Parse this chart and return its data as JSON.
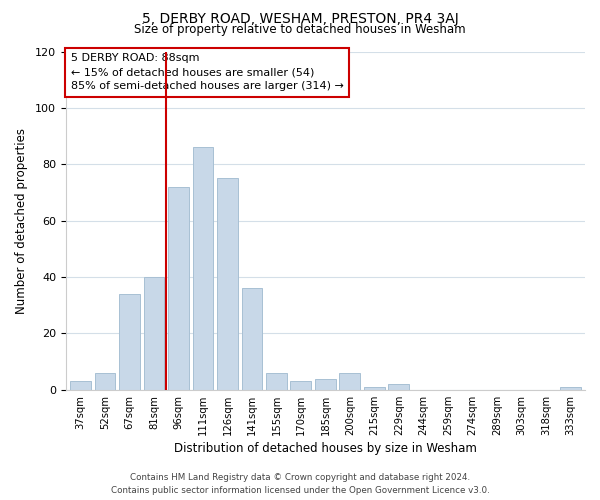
{
  "title": "5, DERBY ROAD, WESHAM, PRESTON, PR4 3AJ",
  "subtitle": "Size of property relative to detached houses in Wesham",
  "xlabel": "Distribution of detached houses by size in Wesham",
  "ylabel": "Number of detached properties",
  "categories": [
    "37sqm",
    "52sqm",
    "67sqm",
    "81sqm",
    "96sqm",
    "111sqm",
    "126sqm",
    "141sqm",
    "155sqm",
    "170sqm",
    "185sqm",
    "200sqm",
    "215sqm",
    "229sqm",
    "244sqm",
    "259sqm",
    "274sqm",
    "289sqm",
    "303sqm",
    "318sqm",
    "333sqm"
  ],
  "values": [
    3,
    6,
    34,
    40,
    72,
    86,
    75,
    36,
    6,
    3,
    4,
    6,
    1,
    2,
    0,
    0,
    0,
    0,
    0,
    0,
    1
  ],
  "bar_color": "#c8d8e8",
  "bar_edge_color": "#a8c0d4",
  "vline_x": 3.5,
  "vline_color": "#cc0000",
  "annotation_line1": "5 DERBY ROAD: 88sqm",
  "annotation_line2": "← 15% of detached houses are smaller (54)",
  "annotation_line3": "85% of semi-detached houses are larger (314) →",
  "annotation_box_color": "#ffffff",
  "annotation_box_edge": "#cc0000",
  "ylim": [
    0,
    120
  ],
  "yticks": [
    0,
    20,
    40,
    60,
    80,
    100,
    120
  ],
  "footer": "Contains HM Land Registry data © Crown copyright and database right 2024.\nContains public sector information licensed under the Open Government Licence v3.0.",
  "bg_color": "#ffffff",
  "grid_color": "#d4dfe8"
}
